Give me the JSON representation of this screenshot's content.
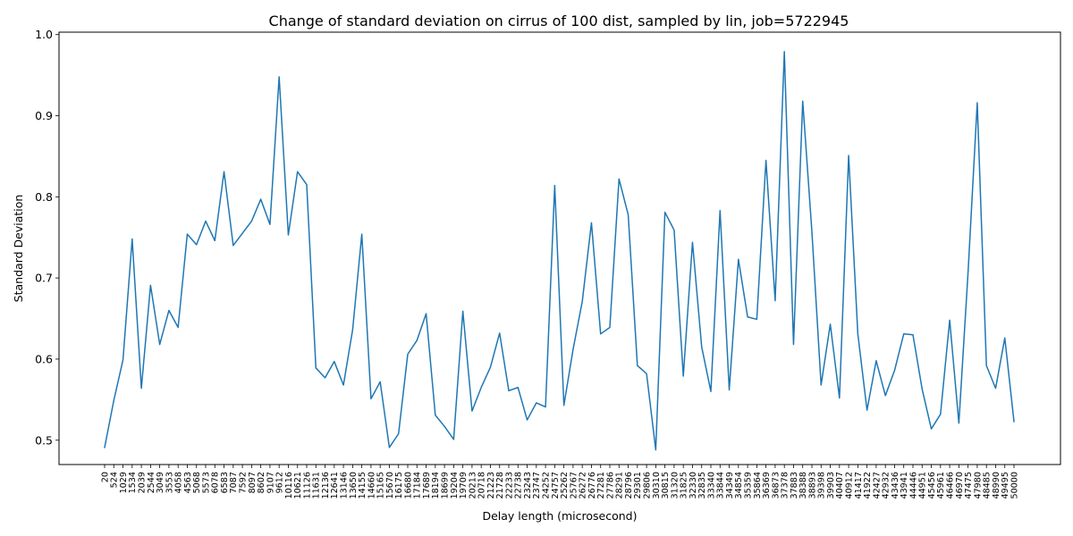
{
  "chart_data": {
    "type": "line",
    "title": "Change of standard deviation on cirrus of 100 dist, sampled by lin, job=5722945",
    "xlabel": "Delay length (microsecond)",
    "ylabel": "Standard Deviation",
    "ylim": [
      0.47,
      1.003
    ],
    "yticks": [
      "0.5",
      "0.6",
      "0.7",
      "0.8",
      "0.9",
      "1.0"
    ],
    "grid": false,
    "line_color": "#1f77b4",
    "categories": [
      "20",
      "524",
      "1029",
      "1534",
      "2039",
      "2544",
      "3049",
      "3553",
      "4058",
      "4563",
      "5068",
      "5573",
      "6078",
      "6583",
      "7087",
      "7592",
      "8097",
      "8602",
      "9107",
      "9612",
      "10116",
      "10621",
      "11126",
      "11631",
      "12136",
      "12641",
      "13146",
      "13650",
      "14155",
      "14660",
      "15165",
      "15670",
      "16175",
      "16680",
      "17184",
      "17689",
      "18194",
      "18699",
      "19204",
      "19709",
      "20213",
      "20718",
      "21223",
      "21728",
      "22233",
      "22738",
      "23243",
      "23747",
      "24252",
      "24757",
      "25262",
      "25767",
      "26272",
      "26776",
      "27281",
      "27786",
      "28291",
      "28796",
      "29301",
      "29806",
      "30310",
      "30815",
      "31320",
      "31825",
      "32330",
      "32835",
      "33340",
      "33844",
      "34349",
      "34854",
      "35359",
      "35864",
      "36369",
      "36873",
      "37378",
      "37883",
      "38388",
      "38893",
      "39398",
      "39903",
      "40407",
      "40912",
      "41417",
      "41922",
      "42427",
      "42932",
      "43436",
      "43941",
      "44446",
      "44951",
      "45456",
      "45961",
      "46466",
      "46970",
      "47475",
      "47980",
      "48485",
      "48990",
      "49495",
      "50000"
    ],
    "values": [
      0.491,
      0.549,
      0.599,
      0.748,
      0.564,
      0.691,
      0.618,
      0.66,
      0.639,
      0.754,
      0.741,
      0.77,
      0.746,
      0.831,
      0.74,
      0.755,
      0.77,
      0.797,
      0.766,
      0.948,
      0.753,
      0.831,
      0.815,
      0.589,
      0.577,
      0.597,
      0.568,
      0.636,
      0.754,
      0.551,
      0.572,
      0.491,
      0.508,
      0.606,
      0.623,
      0.656,
      0.531,
      0.517,
      0.501,
      0.659,
      0.536,
      0.565,
      0.59,
      0.632,
      0.561,
      0.565,
      0.525,
      0.546,
      0.541,
      0.814,
      0.543,
      0.612,
      0.671,
      0.768,
      0.631,
      0.639,
      0.822,
      0.778,
      0.592,
      0.582,
      0.488,
      0.781,
      0.759,
      0.579,
      0.744,
      0.615,
      0.56,
      0.783,
      0.562,
      0.723,
      0.652,
      0.649,
      0.845,
      0.672,
      0.979,
      0.618,
      0.918,
      0.757,
      0.568,
      0.643,
      0.552,
      0.851,
      0.631,
      0.537,
      0.598,
      0.555,
      0.586,
      0.631,
      0.63,
      0.563,
      0.514,
      0.532,
      0.648,
      0.521,
      0.707,
      0.916,
      0.592,
      0.564,
      0.626,
      0.523
    ]
  }
}
